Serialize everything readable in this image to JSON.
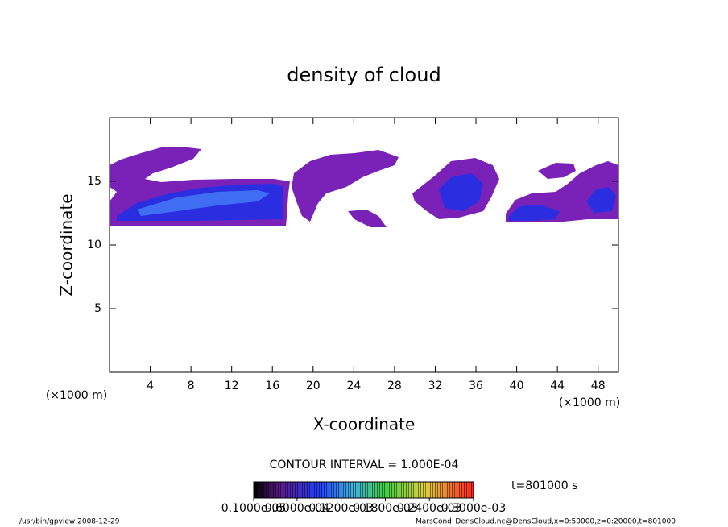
{
  "chart_data": {
    "type": "contour",
    "title": "density of cloud",
    "x_label": "X-coordinate",
    "y_label": "Z-coordinate",
    "x_unit": "(×1000 m)",
    "y_unit": "(×1000 m)",
    "xlim": [
      0,
      50
    ],
    "ylim": [
      0,
      20
    ],
    "xticks": [
      4,
      8,
      12,
      16,
      20,
      24,
      28,
      32,
      36,
      40,
      44,
      48
    ],
    "yticks": [
      5,
      10,
      15
    ],
    "contour_interval": "CONTOUR INTERVAL = 1.000E-04",
    "time_label": "t=801000 s",
    "colorbar_lim": [
      1e-06,
      0.0003
    ],
    "colorbar_ticks": [
      {
        "value": 1e-06,
        "label": "0.1000e-05"
      },
      {
        "value": 6e-05,
        "label": "0.6000e-04"
      },
      {
        "value": 0.00012,
        "label": "0.1200e-03"
      },
      {
        "value": 0.00018,
        "label": "0.1800e-03"
      },
      {
        "value": 0.00024,
        "label": "0.2400e-03"
      },
      {
        "value": 0.0003,
        "label": "0.3000e-03"
      }
    ],
    "footer_left": "/usr/bin/gpview  2008-12-29",
    "footer_right": "MarsCond_DensCloud.nc@DensCloud,x=0:50000,z=0:20000,t=801000"
  }
}
